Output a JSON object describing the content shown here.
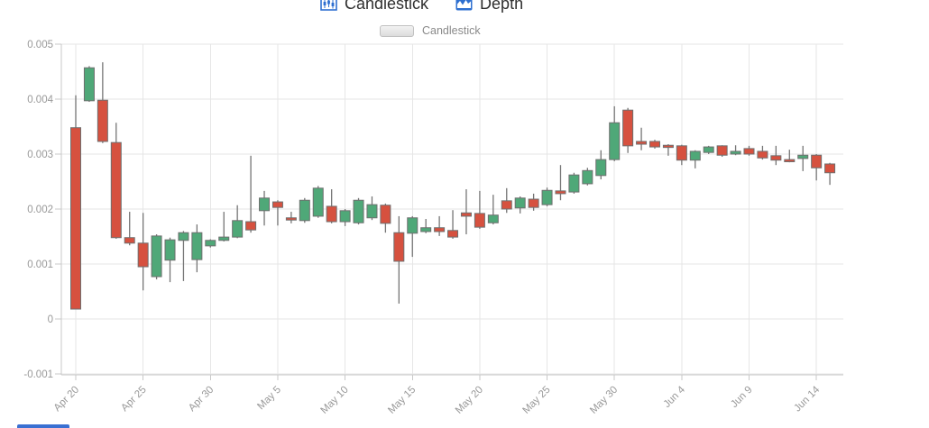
{
  "header": {
    "tabs": [
      {
        "label": "Candlestick",
        "icon": "candlestick-chart-icon"
      },
      {
        "label": "Depth",
        "icon": "area-chart-icon"
      }
    ]
  },
  "legend": {
    "label": "Candlestick"
  },
  "colors": {
    "up": "#4fa878",
    "down": "#d6513f",
    "candle_border": "#6f6f6f",
    "wick": "#757575",
    "grid": "#e6e6e6",
    "axis": "#c9c9c9",
    "axis_label": "#999999",
    "tab_icon_blue": "#2e6fd0",
    "bottom_fragment_blue": "#3a70d2"
  },
  "chart_data": {
    "type": "candlestick",
    "series_name": "Candlestick",
    "title": "",
    "grid": true,
    "legend_position": "top-center",
    "y_axis": {
      "range": [
        -0.001,
        0.005
      ],
      "ticks": [
        {
          "value": 0.005,
          "label": "0.005"
        },
        {
          "value": 0.004,
          "label": "0.004"
        },
        {
          "value": 0.003,
          "label": "0.003"
        },
        {
          "value": 0.002,
          "label": "0.002"
        },
        {
          "value": 0.001,
          "label": "0.001"
        },
        {
          "value": 0,
          "label": "0"
        },
        {
          "value": -0.001,
          "label": "-0.001"
        }
      ]
    },
    "x_axis": {
      "tick_every": 5,
      "tick_labels": [
        "Apr 20",
        "Apr 25",
        "Apr 30",
        "May 5",
        "May 10",
        "May 15",
        "May 20",
        "May 25",
        "May 30",
        "Jun 4",
        "Jun 9",
        "Jun 14"
      ]
    },
    "candles": [
      {
        "d": "Apr 20",
        "o": 0.00348,
        "h": 0.00407,
        "l": 0.00018,
        "c": 0.00018
      },
      {
        "d": "Apr 21",
        "o": 0.00397,
        "h": 0.0046,
        "l": 0.00395,
        "c": 0.00457
      },
      {
        "d": "Apr 22",
        "o": 0.00398,
        "h": 0.00467,
        "l": 0.0032,
        "c": 0.00323
      },
      {
        "d": "Apr 23",
        "o": 0.00321,
        "h": 0.00357,
        "l": 0.00146,
        "c": 0.00148
      },
      {
        "d": "Apr 24",
        "o": 0.00148,
        "h": 0.00195,
        "l": 0.00134,
        "c": 0.00138
      },
      {
        "d": "Apr 25",
        "o": 0.00138,
        "h": 0.00193,
        "l": 0.00052,
        "c": 0.00095
      },
      {
        "d": "Apr 26",
        "o": 0.00077,
        "h": 0.00154,
        "l": 0.00072,
        "c": 0.00151
      },
      {
        "d": "Apr 27",
        "o": 0.00107,
        "h": 0.00148,
        "l": 0.00067,
        "c": 0.00144
      },
      {
        "d": "Apr 28",
        "o": 0.00143,
        "h": 0.0016,
        "l": 0.00069,
        "c": 0.00157
      },
      {
        "d": "Apr 29",
        "o": 0.00108,
        "h": 0.00172,
        "l": 0.00085,
        "c": 0.00157
      },
      {
        "d": "Apr 30",
        "o": 0.00133,
        "h": 0.00145,
        "l": 0.0013,
        "c": 0.00143
      },
      {
        "d": "May 1",
        "o": 0.00143,
        "h": 0.00195,
        "l": 0.00141,
        "c": 0.00149
      },
      {
        "d": "May 2",
        "o": 0.00149,
        "h": 0.00207,
        "l": 0.00147,
        "c": 0.00179
      },
      {
        "d": "May 3",
        "o": 0.00177,
        "h": 0.00297,
        "l": 0.00157,
        "c": 0.00162
      },
      {
        "d": "May 4",
        "o": 0.00197,
        "h": 0.00233,
        "l": 0.0017,
        "c": 0.0022
      },
      {
        "d": "May 5",
        "o": 0.00213,
        "h": 0.00216,
        "l": 0.0017,
        "c": 0.00203
      },
      {
        "d": "May 6",
        "o": 0.00184,
        "h": 0.00195,
        "l": 0.00174,
        "c": 0.0018
      },
      {
        "d": "May 7",
        "o": 0.00179,
        "h": 0.0022,
        "l": 0.00175,
        "c": 0.00216
      },
      {
        "d": "May 8",
        "o": 0.00187,
        "h": 0.00242,
        "l": 0.00184,
        "c": 0.00238
      },
      {
        "d": "May 9",
        "o": 0.00205,
        "h": 0.00236,
        "l": 0.00174,
        "c": 0.00177
      },
      {
        "d": "May 10",
        "o": 0.00177,
        "h": 0.002,
        "l": 0.00169,
        "c": 0.00197
      },
      {
        "d": "May 11",
        "o": 0.00175,
        "h": 0.0022,
        "l": 0.00172,
        "c": 0.00216
      },
      {
        "d": "May 12",
        "o": 0.00184,
        "h": 0.00223,
        "l": 0.0018,
        "c": 0.00208
      },
      {
        "d": "May 13",
        "o": 0.00207,
        "h": 0.0021,
        "l": 0.00157,
        "c": 0.00174
      },
      {
        "d": "May 14",
        "o": 0.00157,
        "h": 0.00187,
        "l": 0.00028,
        "c": 0.00105
      },
      {
        "d": "May 15",
        "o": 0.00156,
        "h": 0.00187,
        "l": 0.00113,
        "c": 0.00184
      },
      {
        "d": "May 16",
        "o": 0.00159,
        "h": 0.00182,
        "l": 0.00156,
        "c": 0.00166
      },
      {
        "d": "May 17",
        "o": 0.00166,
        "h": 0.00187,
        "l": 0.00151,
        "c": 0.00159
      },
      {
        "d": "May 18",
        "o": 0.00161,
        "h": 0.00198,
        "l": 0.00146,
        "c": 0.00149
      },
      {
        "d": "May 19",
        "o": 0.00193,
        "h": 0.00236,
        "l": 0.00154,
        "c": 0.00187
      },
      {
        "d": "May 20",
        "o": 0.00192,
        "h": 0.00233,
        "l": 0.00164,
        "c": 0.00167
      },
      {
        "d": "May 21",
        "o": 0.00175,
        "h": 0.00226,
        "l": 0.00172,
        "c": 0.00189
      },
      {
        "d": "May 22",
        "o": 0.00215,
        "h": 0.00238,
        "l": 0.00193,
        "c": 0.002
      },
      {
        "d": "May 23",
        "o": 0.00202,
        "h": 0.00223,
        "l": 0.00192,
        "c": 0.0022
      },
      {
        "d": "May 24",
        "o": 0.00218,
        "h": 0.00228,
        "l": 0.00197,
        "c": 0.00203
      },
      {
        "d": "May 25",
        "o": 0.00208,
        "h": 0.00239,
        "l": 0.00205,
        "c": 0.00234
      },
      {
        "d": "May 26",
        "o": 0.00233,
        "h": 0.0028,
        "l": 0.00216,
        "c": 0.00228
      },
      {
        "d": "May 27",
        "o": 0.00231,
        "h": 0.00266,
        "l": 0.00228,
        "c": 0.00262
      },
      {
        "d": "May 28",
        "o": 0.00246,
        "h": 0.00275,
        "l": 0.00243,
        "c": 0.0027
      },
      {
        "d": "May 29",
        "o": 0.00261,
        "h": 0.00307,
        "l": 0.00254,
        "c": 0.0029
      },
      {
        "d": "May 30",
        "o": 0.0029,
        "h": 0.00387,
        "l": 0.00287,
        "c": 0.00357
      },
      {
        "d": "May 31",
        "o": 0.0038,
        "h": 0.00384,
        "l": 0.00302,
        "c": 0.00315
      },
      {
        "d": "Jun 1",
        "o": 0.00323,
        "h": 0.00348,
        "l": 0.00307,
        "c": 0.00318
      },
      {
        "d": "Jun 2",
        "o": 0.00323,
        "h": 0.00326,
        "l": 0.0031,
        "c": 0.00313
      },
      {
        "d": "Jun 3",
        "o": 0.00316,
        "h": 0.00318,
        "l": 0.00297,
        "c": 0.00314
      },
      {
        "d": "Jun 4",
        "o": 0.00315,
        "h": 0.00317,
        "l": 0.0028,
        "c": 0.00289
      },
      {
        "d": "Jun 5",
        "o": 0.00289,
        "h": 0.00307,
        "l": 0.00274,
        "c": 0.00305
      },
      {
        "d": "Jun 6",
        "o": 0.00303,
        "h": 0.00315,
        "l": 0.003,
        "c": 0.00313
      },
      {
        "d": "Jun 7",
        "o": 0.00315,
        "h": 0.00316,
        "l": 0.00295,
        "c": 0.00298
      },
      {
        "d": "Jun 8",
        "o": 0.003,
        "h": 0.00316,
        "l": 0.00298,
        "c": 0.00305
      },
      {
        "d": "Jun 9",
        "o": 0.0031,
        "h": 0.00315,
        "l": 0.00297,
        "c": 0.003
      },
      {
        "d": "Jun 10",
        "o": 0.00305,
        "h": 0.00315,
        "l": 0.0029,
        "c": 0.00293
      },
      {
        "d": "Jun 11",
        "o": 0.00297,
        "h": 0.00315,
        "l": 0.0028,
        "c": 0.00289
      },
      {
        "d": "Jun 12",
        "o": 0.0029,
        "h": 0.00308,
        "l": 0.00285,
        "c": 0.00287
      },
      {
        "d": "Jun 13",
        "o": 0.00292,
        "h": 0.00315,
        "l": 0.00269,
        "c": 0.00298
      },
      {
        "d": "Jun 14",
        "o": 0.00298,
        "h": 0.003,
        "l": 0.00252,
        "c": 0.00275
      },
      {
        "d": "Jun 15",
        "o": 0.00282,
        "h": 0.00284,
        "l": 0.00244,
        "c": 0.00266
      }
    ]
  }
}
